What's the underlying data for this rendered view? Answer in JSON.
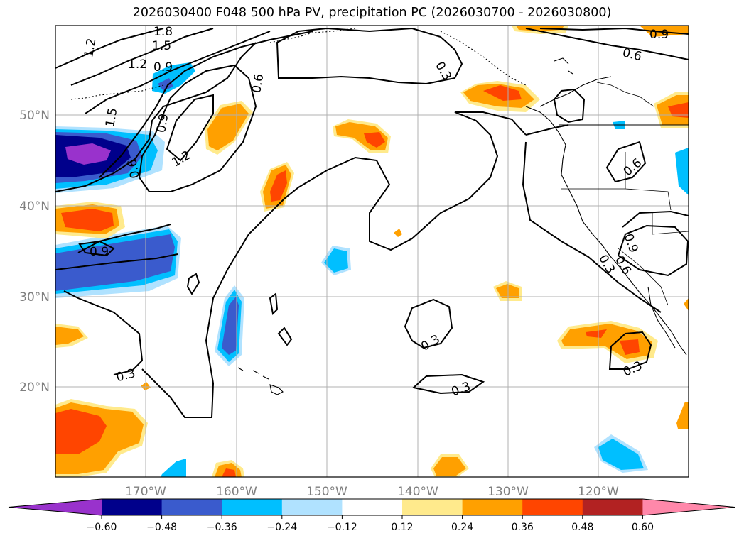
{
  "title": "2026030400 F048 500 hPa PV, precipitation PC (2026030700 - 2026030800)",
  "lat_labels": [
    "50°N",
    "40°N",
    "30°N",
    "20°N"
  ],
  "lon_labels": [
    "170°W",
    "160°W",
    "150°W",
    "140°W",
    "130°W",
    "120°W"
  ],
  "colorbar": {
    "ticks": [
      "−0.60",
      "−0.48",
      "−0.36",
      "−0.24",
      "−0.12",
      "0.12",
      "0.24",
      "0.36",
      "0.48",
      "0.60"
    ],
    "colors": [
      "#9932cc",
      "#00008b",
      "#3a5bcd",
      "#00bfff",
      "#b0e2ff",
      "#ffffff",
      "#ffea8c",
      "#ffa000",
      "#ff4500",
      "#b22222",
      "#ff88aa"
    ]
  },
  "contour_labels": [
    "1.8",
    "1.5",
    "1.2",
    "1.2",
    "0.9",
    "0.6",
    "0.3",
    "0.9",
    "0.6",
    "1.5",
    "0.9",
    "1.2",
    "0.6",
    "0.9",
    "0.6",
    "0.3",
    "0.6",
    "0.9",
    "0.3",
    "0.3",
    "0.3",
    "0.3"
  ]
}
